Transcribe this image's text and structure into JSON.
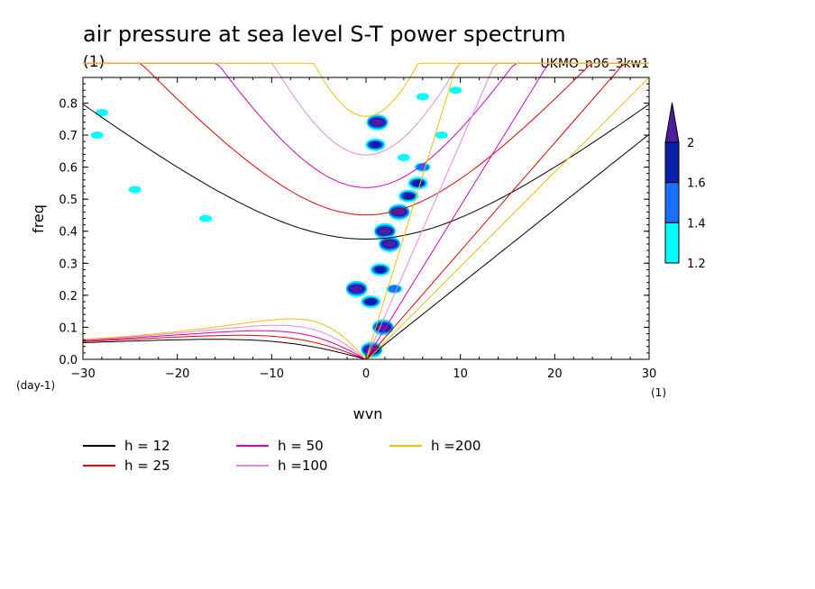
{
  "chart_data": {
    "type": "contour",
    "title": "air pressure at sea level S-T power spectrum",
    "units_left": "(1)",
    "model": "UKMO_n96_3kw1",
    "xlabel": "wvn",
    "ylabel": "freq",
    "x_unit": "(1)",
    "y_unit": "(day-1)",
    "xlim": [
      -30,
      30
    ],
    "ylim": [
      0,
      0.88
    ],
    "x_ticks": [
      -30,
      -20,
      -10,
      0,
      10,
      20,
      30
    ],
    "x_tick_labels": [
      "−30",
      "−20",
      "−10",
      "0",
      "10",
      "20",
      "30"
    ],
    "y_ticks": [
      0.0,
      0.1,
      0.2,
      0.3,
      0.4,
      0.5,
      0.6,
      0.7,
      0.8
    ],
    "y_tick_labels": [
      "0.0",
      "0.1",
      "0.2",
      "0.3",
      "0.4",
      "0.5",
      "0.6",
      "0.7",
      "0.8"
    ],
    "colorbar": {
      "levels": [
        "1.2",
        "1.4",
        "1.6",
        "2"
      ],
      "colors": [
        "#00ffff",
        "#1a6fff",
        "#0a1fa8",
        "#4b1fa0"
      ]
    },
    "dispersion_curves": [
      {
        "label": "h = 12",
        "h": 12,
        "color": "#000000"
      },
      {
        "label": "h = 25",
        "h": 25,
        "color": "#e00000"
      },
      {
        "label": "h = 50",
        "h": 50,
        "color": "#d000c0"
      },
      {
        "label": "h =100",
        "h": 100,
        "color": "#e08ae0"
      },
      {
        "label": "h =200",
        "h": 200,
        "color": "#f0c000"
      }
    ],
    "spectral_blobs": [
      {
        "x": 1.2,
        "y": 0.74,
        "level": 3
      },
      {
        "x": 1.0,
        "y": 0.67,
        "level": 2
      },
      {
        "x": 2.0,
        "y": 0.4,
        "level": 3
      },
      {
        "x": 3.5,
        "y": 0.46,
        "level": 3
      },
      {
        "x": 4.5,
        "y": 0.51,
        "level": 2
      },
      {
        "x": 5.5,
        "y": 0.55,
        "level": 2
      },
      {
        "x": 6.0,
        "y": 0.6,
        "level": 1
      },
      {
        "x": 2.5,
        "y": 0.36,
        "level": 3
      },
      {
        "x": 1.5,
        "y": 0.28,
        "level": 2
      },
      {
        "x": -1.0,
        "y": 0.22,
        "level": 3
      },
      {
        "x": 0.5,
        "y": 0.18,
        "level": 2
      },
      {
        "x": 1.8,
        "y": 0.1,
        "level": 3
      },
      {
        "x": 0.6,
        "y": 0.03,
        "level": 3
      },
      {
        "x": 3.0,
        "y": 0.22,
        "level": 1
      },
      {
        "x": 8.0,
        "y": 0.7,
        "level": 0
      },
      {
        "x": 9.5,
        "y": 0.84,
        "level": 0
      },
      {
        "x": 6.0,
        "y": 0.82,
        "level": 0
      },
      {
        "x": 4.0,
        "y": 0.63,
        "level": 0
      },
      {
        "x": -28.0,
        "y": 0.77,
        "level": 0
      },
      {
        "x": -28.5,
        "y": 0.7,
        "level": 0
      },
      {
        "x": -24.5,
        "y": 0.53,
        "level": 0
      },
      {
        "x": -17.0,
        "y": 0.44,
        "level": 0
      }
    ]
  }
}
